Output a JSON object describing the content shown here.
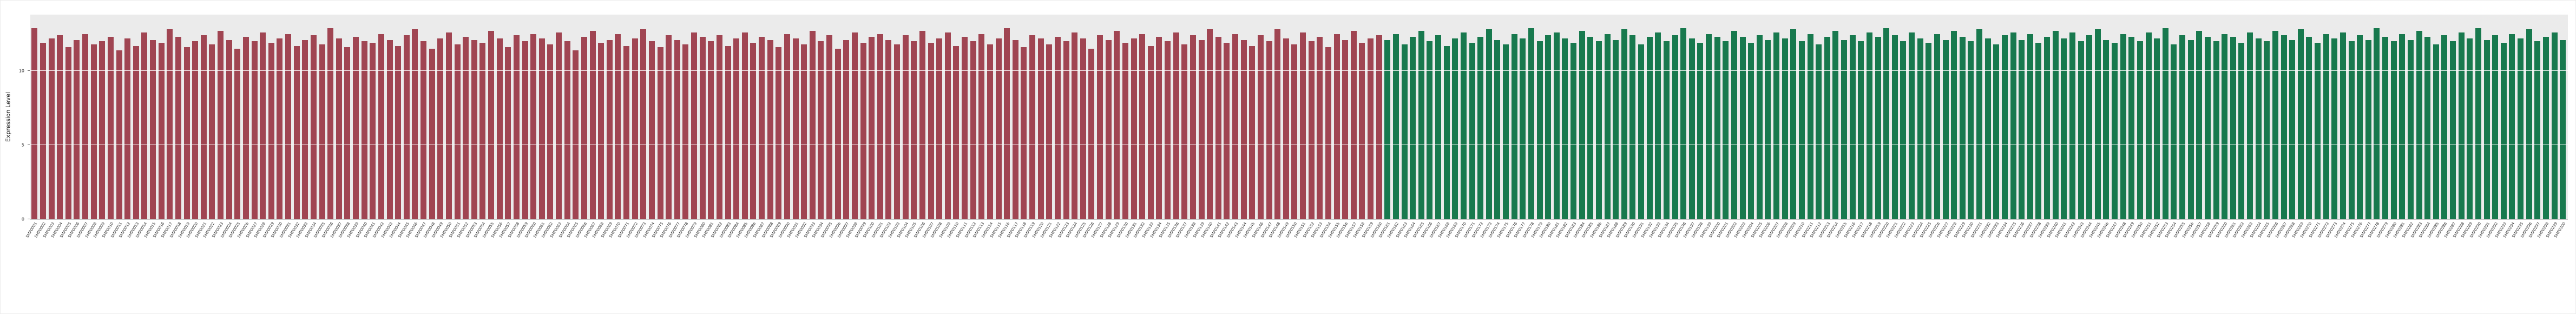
{
  "chart_data": {
    "type": "bar",
    "title": "",
    "xlabel": "",
    "ylabel": "Expression Level",
    "ylim": [
      0,
      13.8
    ],
    "yticks": [
      0,
      5,
      10
    ],
    "grid": true,
    "legend": "none",
    "panel_background": "#ebebeb",
    "groups": [
      {
        "name": "red-group",
        "color": "#a04552",
        "samples": [
          "SMP0001",
          "SMP0002",
          "SMP0003",
          "SMP0004",
          "SMP0005",
          "SMP0006",
          "SMP0007",
          "SMP0008",
          "SMP0009",
          "SMP0010",
          "SMP0011",
          "SMP0012",
          "SMP0013",
          "SMP0014",
          "SMP0015",
          "SMP0016",
          "SMP0017",
          "SMP0018",
          "SMP0019",
          "SMP0020",
          "SMP0021",
          "SMP0022",
          "SMP0023",
          "SMP0024",
          "SMP0025",
          "SMP0026",
          "SMP0027",
          "SMP0028",
          "SMP0029",
          "SMP0030",
          "SMP0031",
          "SMP0032",
          "SMP0033",
          "SMP0034",
          "SMP0035",
          "SMP0036",
          "SMP0037",
          "SMP0038",
          "SMP0039",
          "SMP0040",
          "SMP0041",
          "SMP0042",
          "SMP0043",
          "SMP0044",
          "SMP0045",
          "SMP0046",
          "SMP0047",
          "SMP0048",
          "SMP0049",
          "SMP0050",
          "SMP0051",
          "SMP0052",
          "SMP0053",
          "SMP0054",
          "SMP0055",
          "SMP0056",
          "SMP0057",
          "SMP0058",
          "SMP0059",
          "SMP0060",
          "SMP0061",
          "SMP0062",
          "SMP0063",
          "SMP0064",
          "SMP0065",
          "SMP0066",
          "SMP0067",
          "SMP0068",
          "SMP0069",
          "SMP0070",
          "SMP0071",
          "SMP0072",
          "SMP0073",
          "SMP0074",
          "SMP0075",
          "SMP0076",
          "SMP0077",
          "SMP0078",
          "SMP0079",
          "SMP0080",
          "SMP0081",
          "SMP0082",
          "SMP0083",
          "SMP0084",
          "SMP0085",
          "SMP0086",
          "SMP0087",
          "SMP0088",
          "SMP0089",
          "SMP0090",
          "SMP0091",
          "SMP0092",
          "SMP0093",
          "SMP0094",
          "SMP0095",
          "SMP0096",
          "SMP0097",
          "SMP0098",
          "SMP0099",
          "SMP0100",
          "SMP0101",
          "SMP0102",
          "SMP0103",
          "SMP0104",
          "SMP0105",
          "SMP0106",
          "SMP0107",
          "SMP0108",
          "SMP0109",
          "SMP0110",
          "SMP0111",
          "SMP0112",
          "SMP0113",
          "SMP0114",
          "SMP0115",
          "SMP0116",
          "SMP0117",
          "SMP0118",
          "SMP0119",
          "SMP0120",
          "SMP0121",
          "SMP0122",
          "SMP0123",
          "SMP0124",
          "SMP0125",
          "SMP0126",
          "SMP0127",
          "SMP0128",
          "SMP0129",
          "SMP0130",
          "SMP0131",
          "SMP0132",
          "SMP0133",
          "SMP0134",
          "SMP0135",
          "SMP0136",
          "SMP0137",
          "SMP0138",
          "SMP0139",
          "SMP0140",
          "SMP0141",
          "SMP0142",
          "SMP0143",
          "SMP0144",
          "SMP0145",
          "SMP0146",
          "SMP0147",
          "SMP0148",
          "SMP0149",
          "SMP0150",
          "SMP0151",
          "SMP0152",
          "SMP0153",
          "SMP0154",
          "SMP0155",
          "SMP0156",
          "SMP0157",
          "SMP0158",
          "SMP0159",
          "SMP0160"
        ],
        "values": [
          12.9,
          11.9,
          12.2,
          12.4,
          11.6,
          12.1,
          12.5,
          11.8,
          12.0,
          12.3,
          11.4,
          12.2,
          11.7,
          12.6,
          12.1,
          11.9,
          12.8,
          12.3,
          11.6,
          12.0,
          12.4,
          11.8,
          12.7,
          12.1,
          11.5,
          12.3,
          12.0,
          12.6,
          11.9,
          12.2,
          12.5,
          11.7,
          12.1,
          12.4,
          11.8,
          12.9,
          12.2,
          11.6,
          12.3,
          12.0,
          11.9,
          12.5,
          12.1,
          11.7,
          12.4,
          12.8,
          12.0,
          11.5,
          12.2,
          12.6,
          11.8,
          12.3,
          12.1,
          11.9,
          12.7,
          12.2,
          11.6,
          12.4,
          12.0,
          12.5,
          12.2,
          11.8,
          12.6,
          12.0,
          11.4,
          12.3,
          12.7,
          11.9,
          12.1,
          12.5,
          11.7,
          12.2,
          12.8,
          12.0,
          11.6,
          12.4,
          12.1,
          11.8,
          12.6,
          12.3,
          12.0,
          12.4,
          11.7,
          12.2,
          12.6,
          11.9,
          12.3,
          12.1,
          11.6,
          12.5,
          12.2,
          11.8,
          12.7,
          12.0,
          12.4,
          11.5,
          12.1,
          12.6,
          11.9,
          12.3,
          12.5,
          12.1,
          11.8,
          12.4,
          12.0,
          12.7,
          11.9,
          12.2,
          12.6,
          11.7,
          12.3,
          12.0,
          12.5,
          11.8,
          12.2,
          12.9,
          12.1,
          11.6,
          12.4,
          12.2,
          11.8,
          12.3,
          12.0,
          12.6,
          12.2,
          11.5,
          12.4,
          12.1,
          12.7,
          11.9,
          12.2,
          12.5,
          11.7,
          12.3,
          12.0,
          12.6,
          11.8,
          12.4,
          12.1,
          12.8,
          12.3,
          11.9,
          12.5,
          12.1,
          11.7,
          12.4,
          12.0,
          12.8,
          12.2,
          11.8,
          12.6,
          12.0,
          12.3,
          11.6,
          12.5,
          12.1,
          12.7,
          11.9,
          12.2,
          12.4
        ]
      },
      {
        "name": "green-group",
        "color": "#18794e",
        "samples": [
          "SMP0161",
          "SMP0162",
          "SMP0163",
          "SMP0164",
          "SMP0165",
          "SMP0166",
          "SMP0167",
          "SMP0168",
          "SMP0169",
          "SMP0170",
          "SMP0171",
          "SMP0172",
          "SMP0173",
          "SMP0174",
          "SMP0175",
          "SMP0176",
          "SMP0177",
          "SMP0178",
          "SMP0179",
          "SMP0180",
          "SMP0181",
          "SMP0182",
          "SMP0183",
          "SMP0184",
          "SMP0185",
          "SMP0186",
          "SMP0187",
          "SMP0188",
          "SMP0189",
          "SMP0190",
          "SMP0191",
          "SMP0192",
          "SMP0193",
          "SMP0194",
          "SMP0195",
          "SMP0196",
          "SMP0197",
          "SMP0198",
          "SMP0199",
          "SMP0200",
          "SMP0201",
          "SMP0202",
          "SMP0203",
          "SMP0204",
          "SMP0205",
          "SMP0206",
          "SMP0207",
          "SMP0208",
          "SMP0209",
          "SMP0210",
          "SMP0211",
          "SMP0212",
          "SMP0213",
          "SMP0214",
          "SMP0215",
          "SMP0216",
          "SMP0217",
          "SMP0218",
          "SMP0219",
          "SMP0220",
          "SMP0221",
          "SMP0222",
          "SMP0223",
          "SMP0224",
          "SMP0225",
          "SMP0226",
          "SMP0227",
          "SMP0228",
          "SMP0229",
          "SMP0230",
          "SMP0231",
          "SMP0232",
          "SMP0233",
          "SMP0234",
          "SMP0235",
          "SMP0236",
          "SMP0237",
          "SMP0238",
          "SMP0239",
          "SMP0240",
          "SMP0241",
          "SMP0242",
          "SMP0243",
          "SMP0244",
          "SMP0245",
          "SMP0246",
          "SMP0247",
          "SMP0248",
          "SMP0249",
          "SMP0250",
          "SMP0251",
          "SMP0252",
          "SMP0253",
          "SMP0254",
          "SMP0255",
          "SMP0256",
          "SMP0257",
          "SMP0258",
          "SMP0259",
          "SMP0260",
          "SMP0261",
          "SMP0262",
          "SMP0263",
          "SMP0264",
          "SMP0265",
          "SMP0266",
          "SMP0267",
          "SMP0268",
          "SMP0269",
          "SMP0270",
          "SMP0271",
          "SMP0272",
          "SMP0273",
          "SMP0274",
          "SMP0275",
          "SMP0276",
          "SMP0277",
          "SMP0278",
          "SMP0279",
          "SMP0280",
          "SMP0281",
          "SMP0282",
          "SMP0283",
          "SMP0284",
          "SMP0285",
          "SMP0286",
          "SMP0287",
          "SMP0288",
          "SMP0289",
          "SMP0290",
          "SMP0291",
          "SMP0292",
          "SMP0293",
          "SMP0294",
          "SMP0295",
          "SMP0296",
          "SMP0297",
          "SMP0298",
          "SMP0299",
          "SMP0300"
        ],
        "values": [
          12.1,
          12.5,
          11.8,
          12.3,
          12.7,
          12.0,
          12.4,
          11.7,
          12.2,
          12.6,
          11.9,
          12.3,
          12.8,
          12.1,
          11.8,
          12.5,
          12.2,
          12.9,
          12.0,
          12.4,
          12.6,
          12.2,
          11.9,
          12.7,
          12.3,
          12.0,
          12.5,
          12.1,
          12.8,
          12.4,
          11.8,
          12.3,
          12.6,
          12.0,
          12.4,
          12.9,
          12.2,
          11.9,
          12.5,
          12.3,
          12.0,
          12.7,
          12.3,
          11.9,
          12.4,
          12.1,
          12.6,
          12.2,
          12.8,
          12.0,
          12.5,
          11.8,
          12.3,
          12.7,
          12.1,
          12.4,
          12.0,
          12.6,
          12.3,
          12.9,
          12.4,
          12.0,
          12.6,
          12.2,
          11.9,
          12.5,
          12.1,
          12.7,
          12.3,
          12.0,
          12.8,
          12.2,
          11.8,
          12.4,
          12.6,
          12.1,
          12.5,
          11.9,
          12.3,
          12.7,
          12.2,
          12.6,
          12.0,
          12.4,
          12.8,
          12.1,
          11.9,
          12.5,
          12.3,
          12.0,
          12.6,
          12.2,
          12.9,
          11.8,
          12.4,
          12.1,
          12.7,
          12.3,
          12.0,
          12.5,
          12.3,
          11.9,
          12.6,
          12.2,
          12.0,
          12.7,
          12.4,
          12.1,
          12.8,
          12.3,
          11.9,
          12.5,
          12.2,
          12.6,
          12.0,
          12.4,
          12.1,
          12.9,
          12.3,
          12.0,
          12.5,
          12.1,
          12.7,
          12.3,
          11.8,
          12.4,
          12.0,
          12.6,
          12.2,
          12.9,
          12.1,
          12.4,
          11.9,
          12.5,
          12.2,
          12.8,
          12.0,
          12.3,
          12.6,
          12.1
        ]
      }
    ]
  }
}
